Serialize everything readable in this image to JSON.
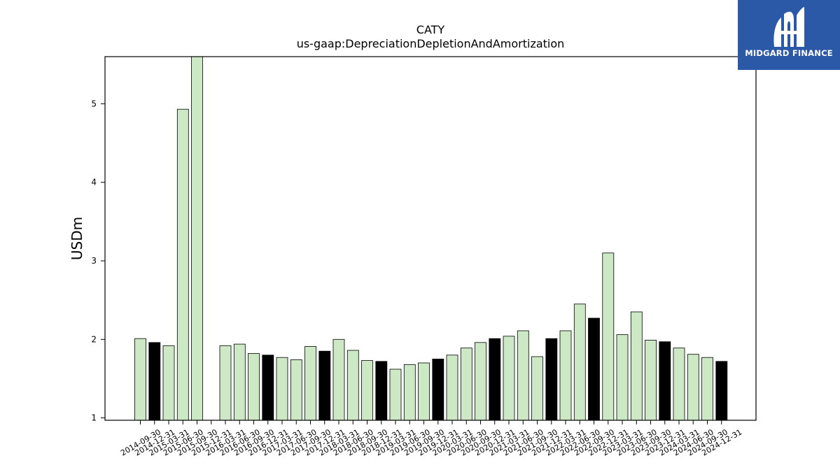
{
  "chart_data": {
    "type": "bar",
    "title": "CATY",
    "subtitle": "us-gaap:DepreciationDepletionAndAmortization",
    "ylabel": "USDm",
    "xlabel": "",
    "ylim": [
      0.97,
      5.6
    ],
    "yticks": [
      1,
      2,
      3,
      4,
      5
    ],
    "grid": false,
    "legend": "none",
    "colors": {
      "quarter": "#cde8c5",
      "year_end": "#000000",
      "edge": "#000000"
    },
    "categories": [
      "2014-09-30",
      "2014-12-31",
      "2015-03-31",
      "2015-06-30",
      "2015-09-30",
      "2015-12-31",
      "2016-03-31",
      "2016-06-30",
      "2016-09-30",
      "2016-12-31",
      "2017-03-31",
      "2017-06-30",
      "2017-09-30",
      "2017-12-31",
      "2018-03-31",
      "2018-06-30",
      "2018-09-30",
      "2018-12-31",
      "2019-03-31",
      "2019-06-30",
      "2019-09-30",
      "2019-12-31",
      "2020-03-31",
      "2020-06-30",
      "2020-09-30",
      "2020-12-31",
      "2021-03-31",
      "2021-06-30",
      "2021-09-30",
      "2021-12-31",
      "2022-03-31",
      "2022-06-30",
      "2022-09-30",
      "2022-12-31",
      "2023-03-31",
      "2023-06-30",
      "2023-09-30",
      "2023-12-31",
      "2024-03-31",
      "2024-06-30",
      "2024-09-30",
      "2024-12-31"
    ],
    "values": [
      2.01,
      1.96,
      1.92,
      4.93,
      5.65,
      null,
      1.92,
      1.94,
      1.82,
      1.8,
      1.77,
      1.74,
      1.91,
      1.85,
      2.0,
      1.86,
      1.73,
      1.72,
      1.62,
      1.68,
      1.7,
      1.75,
      1.8,
      1.89,
      1.96,
      2.01,
      2.04,
      2.11,
      1.78,
      2.01,
      2.11,
      2.45,
      2.27,
      3.1,
      2.06,
      2.35,
      1.99,
      1.97,
      1.89,
      1.81,
      1.77,
      1.72
    ],
    "year_end": [
      false,
      true,
      false,
      false,
      false,
      true,
      false,
      false,
      true,
      false,
      false,
      false,
      false,
      true,
      false,
      false,
      false,
      true,
      false,
      false,
      false,
      true,
      false,
      false,
      false,
      true,
      false,
      false,
      false,
      true,
      false,
      false,
      false,
      true,
      false,
      false,
      false,
      true,
      false,
      false,
      false,
      true
    ],
    "year_end_override": [
      false,
      true,
      false,
      false,
      false,
      false,
      false,
      false,
      false,
      true,
      false,
      false,
      false,
      true,
      false,
      false,
      false,
      true,
      false,
      false,
      false,
      true,
      false,
      false,
      false,
      true,
      false,
      false,
      false,
      true,
      false,
      false,
      true,
      false,
      false,
      false,
      false,
      true,
      false,
      false,
      false,
      true
    ]
  },
  "logo": {
    "text": "MIDGARD FINANCE"
  }
}
